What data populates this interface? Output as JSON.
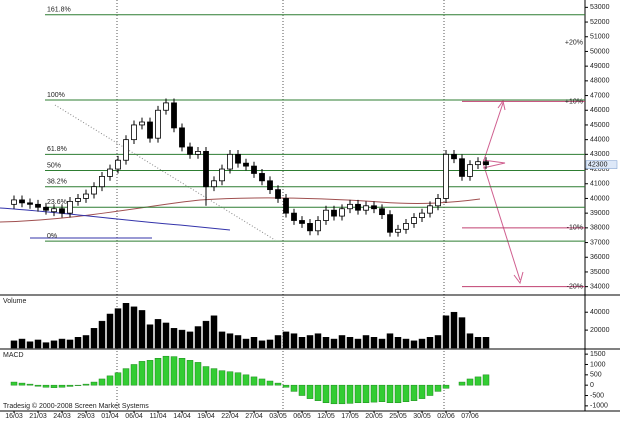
{
  "chart_data": [
    {
      "type": "candlestick",
      "categories": [
        "16/03",
        null,
        null,
        "21/03",
        null,
        null,
        "24/03",
        null,
        null,
        "29/03",
        null,
        null,
        "01/04",
        null,
        null,
        "06/04",
        null,
        null,
        "11/04",
        null,
        null,
        "14/04",
        null,
        null,
        "19/04",
        null,
        null,
        "22/04",
        null,
        null,
        "27/04",
        null,
        null,
        "03/05",
        null,
        null,
        "06/05",
        null,
        null,
        "12/05",
        null,
        null,
        "17/05",
        null,
        null,
        "20/05",
        null,
        null,
        "25/05",
        null,
        null,
        "30/05",
        null,
        null,
        "02/06",
        null,
        null,
        "07/06",
        null,
        null
      ],
      "open": [
        39600,
        39900,
        39700,
        39600,
        39400,
        39100,
        39300,
        39000,
        39800,
        40000,
        40300,
        40800,
        41500,
        42000,
        42600,
        44000,
        45000,
        45200,
        44100,
        46000,
        46500,
        44800,
        43500,
        43000,
        43200,
        40800,
        41200,
        42000,
        43000,
        42400,
        42200,
        41700,
        41200,
        40600,
        40000,
        39000,
        38500,
        38300,
        37800,
        38500,
        39200,
        38800,
        39300,
        39600,
        39200,
        39500,
        39300,
        38900,
        37700,
        37900,
        38300,
        38700,
        39000,
        39500,
        40000,
        43000,
        42700,
        41500,
        42300,
        42500
      ],
      "high": [
        40200,
        40200,
        40000,
        39900,
        39700,
        39600,
        39600,
        40100,
        40300,
        40600,
        41100,
        41800,
        42300,
        42900,
        44300,
        45300,
        45500,
        45500,
        46300,
        46800,
        46800,
        45100,
        43800,
        43500,
        43500,
        41500,
        42300,
        43300,
        43300,
        42700,
        42500,
        42000,
        41500,
        40900,
        40300,
        39300,
        38800,
        38600,
        38800,
        39500,
        39500,
        39600,
        39900,
        39900,
        39800,
        39800,
        39600,
        39200,
        38200,
        38600,
        39000,
        39300,
        39800,
        40300,
        43300,
        43300,
        43000,
        42600,
        42800,
        42800
      ],
      "low": [
        39300,
        39400,
        39300,
        39100,
        38900,
        38800,
        38700,
        38700,
        39500,
        39700,
        40000,
        40500,
        41200,
        41700,
        42300,
        43700,
        44700,
        43800,
        43800,
        45700,
        44500,
        43200,
        42700,
        42700,
        39500,
        40500,
        40900,
        41700,
        42100,
        41900,
        41400,
        40900,
        40300,
        39700,
        38700,
        38200,
        38000,
        37500,
        37500,
        38200,
        38500,
        38500,
        39000,
        38900,
        38900,
        39000,
        38600,
        37400,
        37400,
        37600,
        38000,
        38400,
        38700,
        39200,
        39700,
        42400,
        41200,
        41200,
        42000,
        42000
      ],
      "close": [
        39900,
        39700,
        39600,
        39400,
        39200,
        39300,
        39000,
        39800,
        40000,
        40300,
        40800,
        41500,
        42000,
        42600,
        44000,
        45000,
        45200,
        44100,
        46000,
        46500,
        44800,
        43500,
        43000,
        43200,
        40800,
        41200,
        42000,
        43000,
        42400,
        42200,
        41700,
        41200,
        40600,
        40000,
        39000,
        38500,
        38300,
        37800,
        38500,
        39200,
        38800,
        39300,
        39600,
        39200,
        39500,
        39300,
        38900,
        37700,
        37900,
        38300,
        38700,
        39000,
        39500,
        40000,
        43000,
        42700,
        41500,
        42300,
        42500,
        42300
      ],
      "ylim": [
        33500,
        53500
      ],
      "yticks": [
        34000,
        35000,
        36000,
        37000,
        38000,
        39000,
        40000,
        41000,
        42000,
        43000,
        44000,
        45000,
        46000,
        47000,
        48000,
        49000,
        50000,
        51000,
        52000,
        53000
      ],
      "last_price": 42300,
      "levels": [
        {
          "value": 52500,
          "label": "161.8%"
        },
        {
          "value": 46700,
          "label": "100%"
        },
        {
          "value": 43000,
          "label": "61.8%"
        },
        {
          "value": 41900,
          "label": "50%"
        },
        {
          "value": 40800,
          "label": "38.2%"
        },
        {
          "value": 39400,
          "label": "23.6%"
        },
        {
          "value": 37100,
          "label": "0%"
        }
      ],
      "targets": [
        {
          "value": 50600,
          "label": "+20%"
        },
        {
          "value": 46600,
          "label": "+10%"
        },
        {
          "value": 38000,
          "label": "-10%"
        },
        {
          "value": 34000,
          "label": "-20%"
        }
      ],
      "color": "#000000",
      "level_color": "#2e7d32"
    },
    {
      "type": "bar",
      "title": "Volume",
      "color": "#000000",
      "values": [
        8000,
        10000,
        7000,
        9000,
        6000,
        8000,
        10000,
        9000,
        12000,
        14000,
        22000,
        30000,
        38000,
        44000,
        50000,
        46000,
        42000,
        26000,
        32000,
        28000,
        22000,
        20000,
        18000,
        24000,
        30000,
        36000,
        18000,
        16000,
        14000,
        10000,
        12000,
        8000,
        9000,
        14000,
        18000,
        16000,
        12000,
        14000,
        16000,
        12000,
        10000,
        14000,
        12000,
        10000,
        14000,
        12000,
        10000,
        16000,
        12000,
        10000,
        8000,
        10000,
        12000,
        14000,
        36000,
        40000,
        34000,
        16000,
        12000,
        12000
      ],
      "ylim": [
        0,
        57000
      ],
      "yticks": [
        20000,
        40000
      ]
    },
    {
      "type": "bar",
      "title": "MACD",
      "color": "#33cc33",
      "values": [
        150,
        100,
        50,
        -50,
        -100,
        -120,
        -100,
        -60,
        -20,
        50,
        150,
        300,
        450,
        600,
        800,
        1000,
        1150,
        1200,
        1300,
        1400,
        1380,
        1300,
        1200,
        1100,
        900,
        800,
        700,
        650,
        600,
        500,
        400,
        300,
        200,
        100,
        -100,
        -300,
        -500,
        -650,
        -750,
        -850,
        -900,
        -900,
        -880,
        -850,
        -850,
        -820,
        -800,
        -850,
        -850,
        -800,
        -750,
        -650,
        -500,
        -300,
        -150,
        0,
        150,
        300,
        400,
        500
      ],
      "ylim": [
        -1200,
        1700
      ],
      "yticks": [
        -1000,
        -500,
        0,
        500,
        1000,
        1500
      ]
    }
  ],
  "footer": "Tradesig © 2000-2008 Screen Market Systems"
}
